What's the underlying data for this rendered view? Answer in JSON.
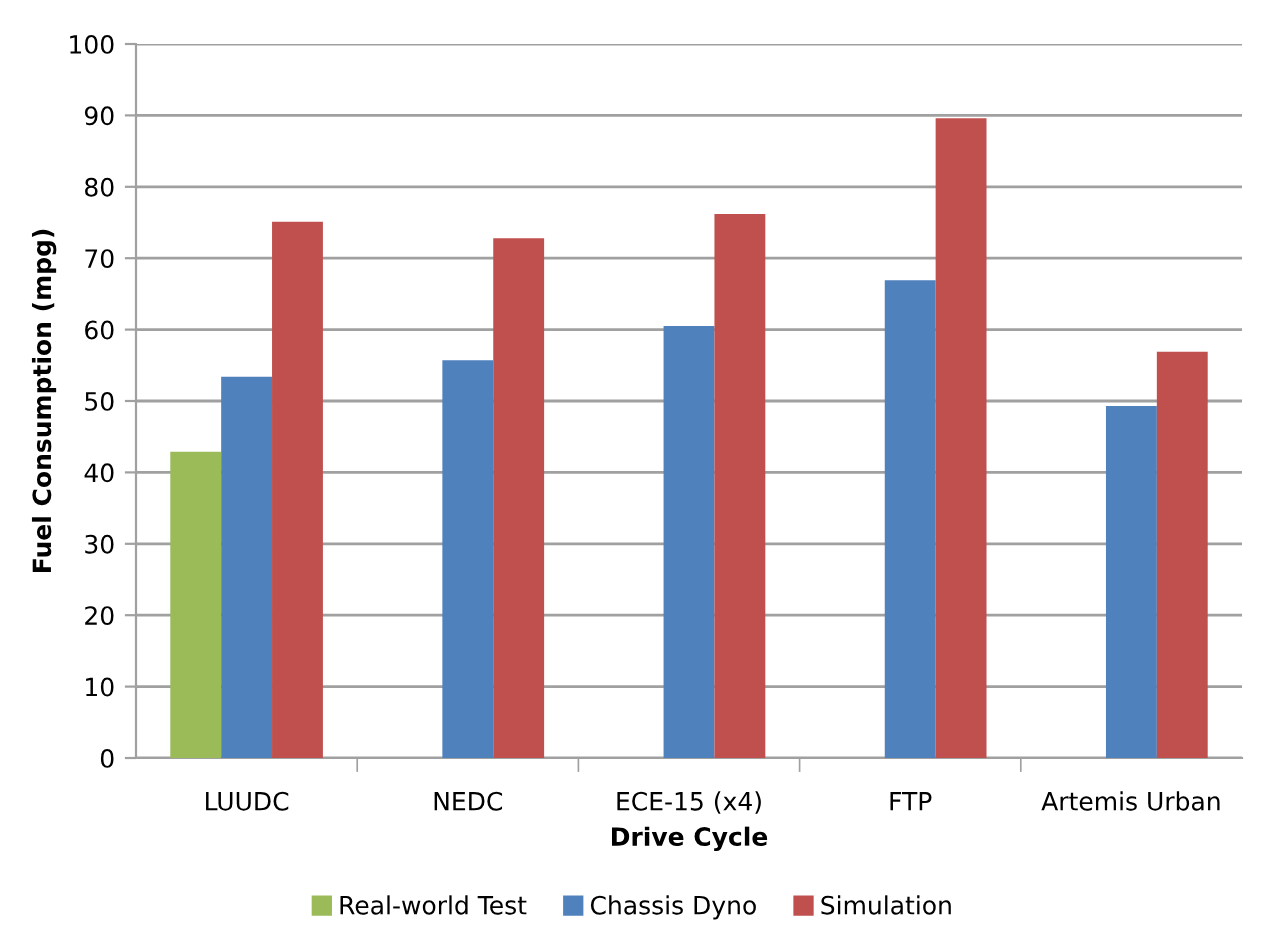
{
  "chart_data": {
    "type": "bar",
    "categories": [
      "LUUDC",
      "NEDC",
      "ECE-15 (x4)",
      "FTP",
      "Artemis Urban"
    ],
    "series": [
      {
        "name": "Real-world Test",
        "color": "#9bbb59",
        "values": [
          42.9,
          null,
          null,
          null,
          null
        ]
      },
      {
        "name": "Chassis Dyno",
        "color": "#4f81bd",
        "values": [
          53.4,
          55.7,
          60.5,
          66.9,
          49.3
        ]
      },
      {
        "name": "Simulation",
        "color": "#c0504d",
        "values": [
          75.1,
          72.8,
          76.2,
          89.6,
          56.9
        ]
      }
    ],
    "xlabel": "Drive Cycle",
    "ylabel": "Fuel Consumption (mpg)",
    "ylim": [
      0,
      100
    ],
    "yticks": [
      0,
      10,
      20,
      30,
      40,
      50,
      60,
      70,
      80,
      90,
      100
    ],
    "grid": "y",
    "legend": "bottom"
  }
}
